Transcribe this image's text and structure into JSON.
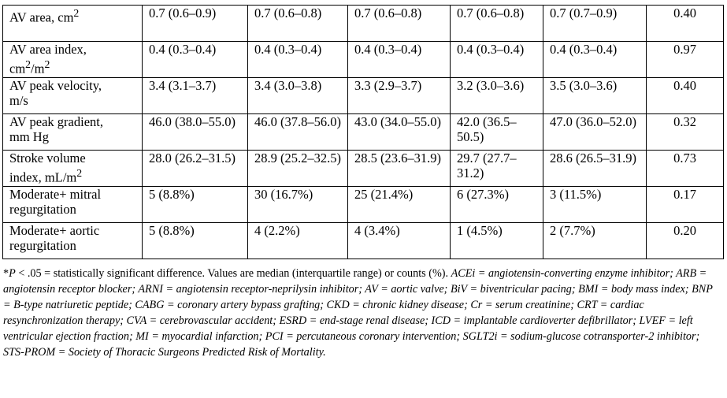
{
  "rows": [
    {
      "label_line1": "AV area, cm",
      "label_sup": "2",
      "label_line2": "",
      "label_sup2": "",
      "cells": [
        "0.7 (0.6–0.9)",
        "0.7 (0.6–0.8)",
        "0.7 (0.6–0.8)",
        "0.7 (0.6–0.8)",
        "0.7 (0.7–0.9)"
      ],
      "p": "0.40"
    },
    {
      "label_line1": "AV area index,",
      "label_sup": "",
      "label_line2": "cm",
      "label_sup2": "2",
      "label_line2_tail": "/m",
      "label_sup3": "2",
      "cells": [
        "0.4 (0.3–0.4)",
        "0.4 (0.3–0.4)",
        "0.4 (0.3–0.4)",
        "0.4 (0.3–0.4)",
        "0.4 (0.3–0.4)"
      ],
      "p": "0.97"
    },
    {
      "label_line1": "AV peak velocity,",
      "label_sup": "",
      "label_line2": "m/s",
      "cells": [
        "3.4 (3.1–3.7)",
        "3.4 (3.0–3.8)",
        "3.3 (2.9–3.7)",
        "3.2 (3.0–3.6)",
        "3.5 (3.0–3.6)"
      ],
      "p": "0.40"
    },
    {
      "label_line1": "AV peak gradient,",
      "label_sup": "",
      "label_line2": "mm Hg",
      "cells": [
        "46.0 (38.0–55.0)",
        "46.0 (37.8–56.0)",
        "43.0 (34.0–55.0)",
        "42.0 (36.5–50.5)",
        "47.0 (36.0–52.0)"
      ],
      "p": "0.32"
    },
    {
      "label_line1": "Stroke volume",
      "label_sup": "",
      "label_line2": "index, mL/m",
      "label_sup2": "2",
      "cells": [
        "28.0 (26.2–31.5)",
        "28.9 (25.2–32.5)",
        "28.5 (23.6–31.9)",
        "29.7 (27.7–31.2)",
        "28.6 (26.5–31.9)"
      ],
      "p": "0.73"
    },
    {
      "label_line1": "Moderate+ mitral",
      "label_sup": "",
      "label_line2": "regurgitation",
      "cells": [
        "5 (8.8%)",
        "30 (16.7%)",
        "25 (21.4%)",
        "6 (27.3%)",
        "3 (11.5%)"
      ],
      "p": "0.17"
    },
    {
      "label_line1": "Moderate+ aortic",
      "label_sup": "",
      "label_line2": "regurgitation",
      "cells": [
        "5 (8.8%)",
        "4 (2.2%)",
        "4 (3.4%)",
        "1 (4.5%)",
        "2 (7.7%)"
      ],
      "p": "0.20"
    }
  ],
  "footnote": {
    "star": "*",
    "p_symbol": "P",
    "intro": " < .05 = statistically significant difference. Values are median (interquartile range) or counts (%). ",
    "abbreviations": "ACEi = angiotensin-converting enzyme inhibitor; ARB = angiotensin receptor blocker; ARNI = angiotensin receptor-neprilysin inhibitor; AV = aortic valve; BiV = biventricular pacing; BMI = body mass index; BNP = B-type natriuretic peptide; CABG = coronary artery bypass grafting; CKD = chronic kidney disease; Cr = serum creatinine; CRT = cardiac resynchronization therapy; CVA = cerebrovascular accident; ESRD = end-stage renal disease; ICD = implantable cardioverter defibrillator; LVEF = left ventricular ejection fraction; MI = myocardial infarction; PCI = percutaneous coronary intervention; SGLT2i = sodium-glucose cotransporter-2 inhibitor; STS-PROM = Society of Thoracic Surgeons Predicted Risk of Mortality."
  }
}
